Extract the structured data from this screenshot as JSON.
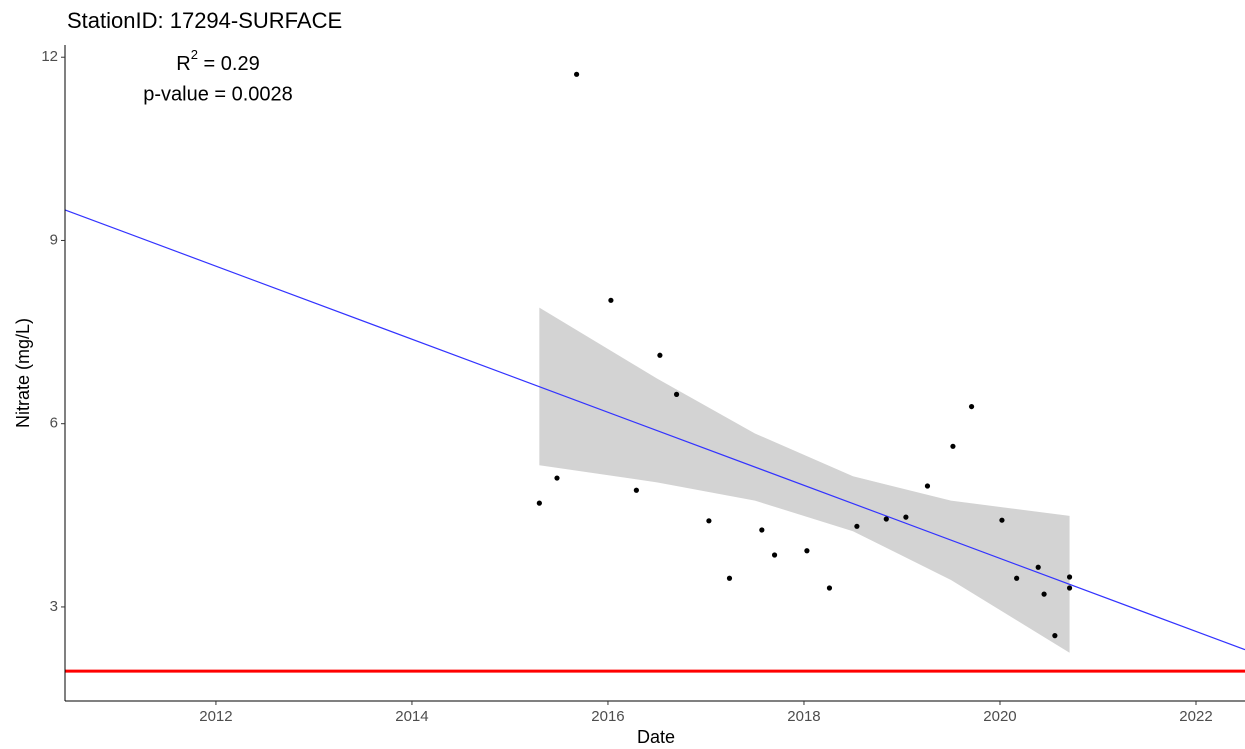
{
  "chart_data": {
    "type": "scatter",
    "title": "StationID: 17294-SURFACE",
    "xlabel": "Date",
    "ylabel": "Nitrate (mg/L)",
    "annotations": {
      "r2_base": "R",
      "r2_sup": "2",
      "r2_text": " = 0.29",
      "p_value": "p-value = 0.0028"
    },
    "series": [
      {
        "color": "#000000",
        "x": [
          2015.3,
          2015.48,
          2015.68,
          2016.03,
          2016.29,
          2016.53,
          2016.7,
          2017.03,
          2017.24,
          2017.57,
          2017.7,
          2018.03,
          2018.26,
          2018.54,
          2018.84,
          2019.04,
          2019.26,
          2019.52,
          2019.71,
          2020.02,
          2020.17,
          2020.39,
          2020.45,
          2020.56,
          2020.71,
          2020.71
        ],
        "values": [
          4.7,
          5.11,
          11.72,
          8.02,
          4.91,
          7.12,
          6.48,
          4.41,
          3.47,
          4.26,
          3.85,
          3.92,
          3.31,
          4.32,
          4.44,
          4.47,
          4.98,
          5.63,
          6.28,
          4.42,
          3.47,
          3.65,
          3.21,
          2.53,
          3.49,
          3.31
        ]
      }
    ],
    "fit": {
      "color": "#3333ff",
      "x": [
        2010.46,
        2022.5
      ],
      "values": [
        9.5,
        2.3
      ]
    },
    "band": {
      "color": "#d3d3d3",
      "x": [
        2015.3,
        2016.5,
        2017.5,
        2018.5,
        2019.5,
        2020.71
      ],
      "upper": [
        7.9,
        6.74,
        5.84,
        5.14,
        4.74,
        4.49
      ],
      "lower": [
        5.32,
        5.04,
        4.74,
        4.24,
        3.44,
        2.25
      ]
    },
    "hline": {
      "color": "#ff0000",
      "value": 1.95
    },
    "xlim": [
      2010.46,
      2022.5
    ],
    "xticks": [
      2012,
      2014,
      2016,
      2018,
      2020,
      2022
    ],
    "ylim": [
      1.46,
      12.2
    ],
    "yticks": [
      3,
      6,
      9,
      12
    ]
  }
}
